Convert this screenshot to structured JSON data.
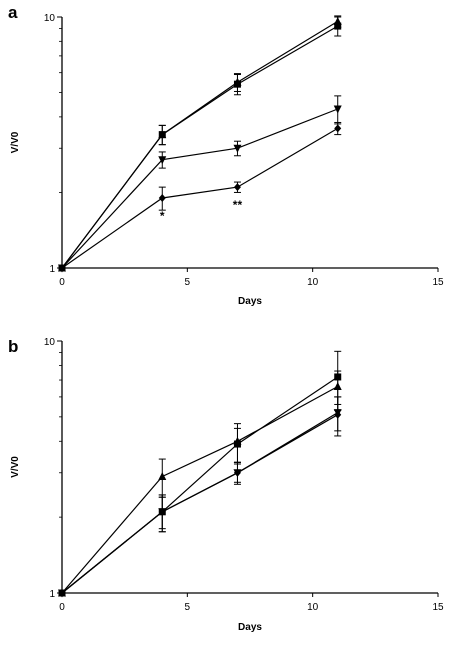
{
  "chart_data": [
    {
      "panel_label": "a",
      "type": "line",
      "xlabel": "Days",
      "ylabel": "V/V0",
      "x_ticks": [
        "0",
        "5",
        "10",
        "15"
      ],
      "y_ticks": [
        "1",
        "10"
      ],
      "xlim": [
        0,
        15
      ],
      "ylim": [
        1,
        10
      ],
      "y_scale": "log",
      "grid": false,
      "annotations": [
        {
          "text": "*",
          "x": 4,
          "y": 1.55
        },
        {
          "text": "**",
          "x": 7,
          "y": 1.72
        }
      ],
      "series": [
        {
          "marker": "square",
          "x": [
            0,
            4,
            7,
            11
          ],
          "y": [
            1,
            3.4,
            5.4,
            9.2
          ],
          "err": [
            0,
            0.3,
            0.5,
            0.8
          ]
        },
        {
          "marker": "triangle-up",
          "x": [
            0,
            4,
            7,
            11
          ],
          "y": [
            1,
            3.4,
            5.5,
            9.6
          ],
          "err": [
            0,
            0.3,
            0.45,
            0.5
          ]
        },
        {
          "marker": "triangle-down",
          "x": [
            0,
            4,
            7,
            11
          ],
          "y": [
            1,
            2.7,
            3.0,
            4.3
          ],
          "err": [
            0,
            0.2,
            0.2,
            0.55
          ]
        },
        {
          "marker": "diamond",
          "x": [
            0,
            4,
            7,
            11
          ],
          "y": [
            1,
            1.9,
            2.1,
            3.6
          ],
          "err": [
            0,
            0.2,
            0.1,
            0.2
          ]
        }
      ]
    },
    {
      "panel_label": "b",
      "type": "line",
      "xlabel": "Days",
      "ylabel": "V/V0",
      "x_ticks": [
        "0",
        "5",
        "10",
        "15"
      ],
      "y_ticks": [
        "1",
        "10"
      ],
      "xlim": [
        0,
        15
      ],
      "ylim": [
        1,
        10
      ],
      "y_scale": "log",
      "grid": false,
      "series": [
        {
          "marker": "square",
          "x": [
            0,
            4,
            7,
            11
          ],
          "y": [
            1,
            2.1,
            3.9,
            7.2
          ],
          "err": [
            0,
            0.35,
            0.6,
            1.9
          ]
        },
        {
          "marker": "triangle-up",
          "x": [
            0,
            4,
            7,
            11
          ],
          "y": [
            1,
            2.9,
            4.0,
            6.6
          ],
          "err": [
            0,
            0.5,
            0.7,
            1.0
          ]
        },
        {
          "marker": "triangle-down",
          "x": [
            0,
            4,
            7,
            11
          ],
          "y": [
            1,
            2.1,
            3.0,
            5.2
          ],
          "err": [
            0,
            0.35,
            0.3,
            0.8
          ]
        },
        {
          "marker": "diamond",
          "x": [
            0,
            4,
            7,
            11
          ],
          "y": [
            1,
            2.1,
            3.0,
            5.1
          ],
          "err": [
            0,
            0.3,
            0.25,
            0.9
          ]
        }
      ]
    }
  ]
}
